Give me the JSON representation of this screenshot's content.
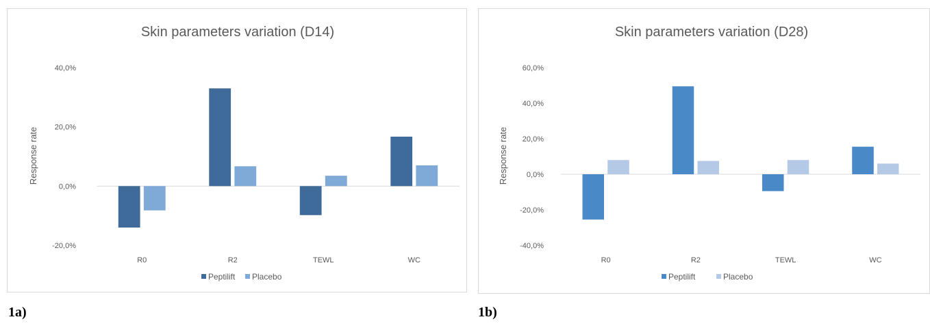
{
  "chart_data": [
    {
      "type": "bar",
      "title": "Skin parameters variation (D14)",
      "xlabel": "",
      "ylabel": "Response rate",
      "categories": [
        "R0",
        "R2",
        "TEWL",
        "WC"
      ],
      "series": [
        {
          "name": "Peptilift",
          "values": [
            -14.0,
            33.0,
            -9.8,
            16.7
          ],
          "color": "#3e6b9a"
        },
        {
          "name": "Placebo",
          "values": [
            -8.2,
            6.7,
            3.5,
            7.0
          ],
          "color": "#7fa9d7"
        }
      ],
      "ylim": [
        -20,
        40
      ],
      "yticks": [
        -20,
        0,
        20,
        40
      ],
      "ytick_labels": [
        "-20,0%",
        "0,0%",
        "20,0%",
        "40,0%"
      ],
      "grid": false,
      "legend": "bottom",
      "caption": "1a)"
    },
    {
      "type": "bar",
      "title": "Skin parameters variation (D28)",
      "xlabel": "",
      "ylabel": "Response rate",
      "categories": [
        "R0",
        "R2",
        "TEWL",
        "WC"
      ],
      "series": [
        {
          "name": "Peptilift",
          "values": [
            -25.5,
            49.5,
            -9.5,
            15.5
          ],
          "color": "#4a89c8"
        },
        {
          "name": "Placebo",
          "values": [
            8.0,
            7.5,
            8.0,
            6.0
          ],
          "color": "#b4c9e5"
        }
      ],
      "ylim": [
        -40,
        60
      ],
      "yticks": [
        -40,
        -20,
        0,
        20,
        40,
        60
      ],
      "ytick_labels": [
        "-40,0%",
        "-20,0%",
        "0,0%",
        "20,0%",
        "40,0%",
        "60,0%"
      ],
      "grid": false,
      "legend": "bottom",
      "caption": "1b)"
    }
  ]
}
